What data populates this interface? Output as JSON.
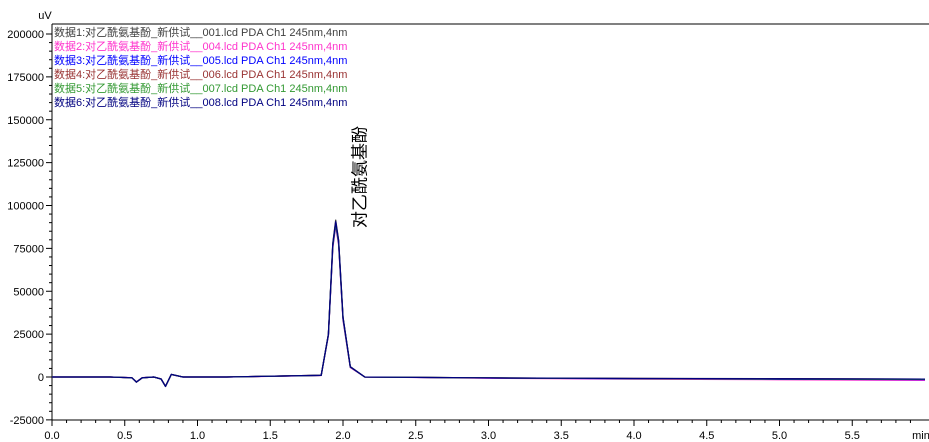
{
  "chart_data": {
    "type": "line",
    "y_unit": "uV",
    "x_unit": "min",
    "xlim": [
      0.0,
      6.0
    ],
    "ylim": [
      -25000,
      200000
    ],
    "x_ticks": [
      "0.0",
      "0.5",
      "1.0",
      "1.5",
      "2.0",
      "2.5",
      "3.0",
      "3.5",
      "4.0",
      "4.5",
      "5.0",
      "5.5"
    ],
    "x_tick_values": [
      0.0,
      0.5,
      1.0,
      1.5,
      2.0,
      2.5,
      3.0,
      3.5,
      4.0,
      4.5,
      5.0,
      5.5
    ],
    "y_ticks": [
      "200000",
      "175000",
      "150000",
      "125000",
      "100000",
      "75000",
      "50000",
      "25000",
      "0",
      "-25000"
    ],
    "y_tick_values": [
      200000,
      175000,
      150000,
      125000,
      100000,
      75000,
      50000,
      25000,
      0,
      -25000
    ],
    "grid": false,
    "legend_position": "top-left",
    "peak_annotation": {
      "label": "对乙酰氨基酚",
      "x": 1.95
    },
    "series": [
      {
        "name": "数据1:对乙酰氨基酚_新供试__001.lcd PDA Ch1 245nm,4nm",
        "color": "#404040",
        "peak_height": 91500,
        "x": [
          0.0,
          0.4,
          0.55,
          0.58,
          0.62,
          0.7,
          0.75,
          0.78,
          0.82,
          0.9,
          1.2,
          1.85,
          1.9,
          1.93,
          1.95,
          1.97,
          2.0,
          2.05,
          2.15,
          3.0,
          4.0,
          5.0,
          6.0
        ],
        "y": [
          0,
          0,
          -500,
          -3000,
          -500,
          0,
          -1200,
          -5500,
          1500,
          0,
          0,
          1000,
          25000,
          78000,
          91500,
          80000,
          35000,
          6000,
          0,
          -500,
          -800,
          -1000,
          -1200
        ]
      },
      {
        "name": "数据2:对乙酰氨基酚_新供试__004.lcd PDA Ch1 245nm,4nm",
        "color": "#ff33cc",
        "peak_height": 88000,
        "x": [
          0.0,
          0.4,
          0.55,
          0.58,
          0.62,
          0.7,
          0.75,
          0.78,
          0.82,
          0.9,
          1.2,
          1.85,
          1.9,
          1.93,
          1.95,
          1.97,
          2.0,
          2.05,
          2.15,
          3.0,
          4.0,
          5.0,
          6.0
        ],
        "y": [
          0,
          0,
          -400,
          -2800,
          -400,
          0,
          -1100,
          -5300,
          1400,
          0,
          0,
          900,
          24000,
          75000,
          88000,
          77000,
          33000,
          5500,
          0,
          -700,
          -1200,
          -1600,
          -2000
        ]
      },
      {
        "name": "数据3:对乙酰氨基酚_新供试__005.lcd PDA Ch1 245nm,4nm",
        "color": "#0000ff",
        "peak_height": 89000,
        "x": [
          0.0,
          0.4,
          0.55,
          0.58,
          0.62,
          0.7,
          0.75,
          0.78,
          0.82,
          0.9,
          1.2,
          1.85,
          1.9,
          1.93,
          1.95,
          1.97,
          2.0,
          2.05,
          2.15,
          3.0,
          4.0,
          5.0,
          6.0
        ],
        "y": [
          0,
          0,
          -450,
          -2900,
          -450,
          0,
          -1150,
          -5400,
          1450,
          0,
          0,
          950,
          24500,
          76000,
          89000,
          78000,
          34000,
          5800,
          0,
          -600,
          -1000,
          -1300,
          -1500
        ]
      },
      {
        "name": "数据4:对乙酰氨基酚_新供试__006.lcd PDA Ch1 245nm,4nm",
        "color": "#993333",
        "peak_height": 90000,
        "x": [
          0.0,
          0.4,
          0.55,
          0.58,
          0.62,
          0.7,
          0.75,
          0.78,
          0.82,
          0.9,
          1.2,
          1.85,
          1.9,
          1.93,
          1.95,
          1.97,
          2.0,
          2.05,
          2.15,
          3.0,
          4.0,
          5.0,
          6.0
        ],
        "y": [
          0,
          0,
          -480,
          -2950,
          -480,
          0,
          -1180,
          -5450,
          1480,
          0,
          0,
          980,
          24800,
          77000,
          90000,
          79000,
          34500,
          5900,
          0,
          -500,
          -900,
          -1100,
          -1300
        ]
      },
      {
        "name": "数据5:对乙酰氨基酚_新供试__007.lcd PDA Ch1 245nm,4nm",
        "color": "#339933",
        "peak_height": 89500,
        "x": [
          0.0,
          0.4,
          0.55,
          0.58,
          0.62,
          0.7,
          0.75,
          0.78,
          0.82,
          0.9,
          1.2,
          1.85,
          1.9,
          1.93,
          1.95,
          1.97,
          2.0,
          2.05,
          2.15,
          3.0,
          4.0,
          5.0,
          6.0
        ],
        "y": [
          0,
          0,
          -460,
          -2920,
          -460,
          0,
          -1160,
          -5420,
          1460,
          0,
          0,
          960,
          24600,
          76500,
          89500,
          78500,
          34200,
          5850,
          0,
          -550,
          -950,
          -1200,
          -1400
        ]
      },
      {
        "name": "数据6:对乙酰氨基酚_新供试__008.lcd PDA Ch1 245nm,4nm",
        "color": "#000080",
        "peak_height": 90500,
        "x": [
          0.0,
          0.4,
          0.55,
          0.58,
          0.62,
          0.7,
          0.75,
          0.78,
          0.82,
          0.9,
          1.2,
          1.85,
          1.9,
          1.93,
          1.95,
          1.97,
          2.0,
          2.05,
          2.15,
          3.0,
          4.0,
          5.0,
          6.0
        ],
        "y": [
          0,
          0,
          -490,
          -2980,
          -490,
          0,
          -1190,
          -5480,
          1490,
          0,
          0,
          990,
          24900,
          77500,
          90500,
          79500,
          34800,
          5950,
          0,
          -520,
          -880,
          -1050,
          -1250
        ]
      }
    ]
  }
}
